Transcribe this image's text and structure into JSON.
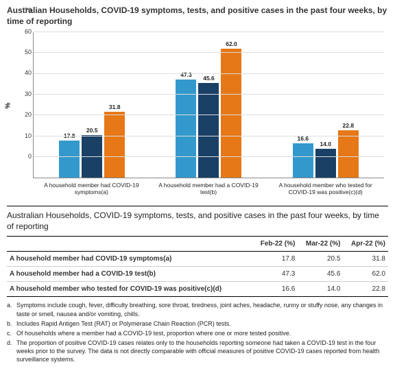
{
  "chart": {
    "title": "Australian Households, COVID-19 symptoms, tests, and positive cases in the past four weeks, by time of reporting",
    "type": "bar",
    "y_label": "%",
    "ylim": [
      0,
      70
    ],
    "ytick_step": 10,
    "yticks": [
      0,
      10,
      20,
      30,
      40,
      50,
      60,
      70
    ],
    "categories": [
      "A household member had COVID-19 symptoms(a)",
      "A household member had a COVID-19 test(b)",
      "A household member who tested for COVID-19 was positive(c)(d)"
    ],
    "series_colors": [
      "#3399cc",
      "#1a4066",
      "#e67817"
    ],
    "series_names": [
      "Feb-22",
      "Mar-22",
      "Apr-22"
    ],
    "values": [
      [
        17.8,
        20.5,
        31.8
      ],
      [
        47.3,
        45.6,
        62.0
      ],
      [
        16.6,
        14.0,
        22.8
      ]
    ],
    "background_color": "#ffffff",
    "grid_color": "#dddddd",
    "axis_color": "#888888"
  },
  "table": {
    "title": "Australian Households, COVID-19 symptoms, tests, and positive cases in the past four weeks, by time of reporting",
    "columns": [
      "",
      "Feb-22 (%)",
      "Mar-22 (%)",
      "Apr-22 (%)"
    ],
    "rows": [
      [
        "A household member had COVID-19 symptoms(a)",
        "17.8",
        "20.5",
        "31.8"
      ],
      [
        "A household member had a COVID-19 test(b)",
        "47.3",
        "45.6",
        "62.0"
      ],
      [
        "A household member who tested for COVID-19 was positive(c)(d)",
        "16.6",
        "14.0",
        "22.8"
      ]
    ]
  },
  "footnotes": [
    {
      "key": "a.",
      "text": "Symptoms include cough, fever, difficulty breathing, sore throat, tiredness, joint aches, headache, runny or stuffy nose, any changes in taste or smell, nausea and/or vomiting, chills."
    },
    {
      "key": "b.",
      "text": "Includes Rapid Antigen Test (RAT) or Polymerase Chain Reaction (PCR) tests."
    },
    {
      "key": "c.",
      "text": "Of households where a member had a COVID-19 test, proportion where one or more tested positive."
    },
    {
      "key": "d.",
      "text": "The proportion of positive COVID-19 cases relates only to the households reporting someone had taken a COVID-19 test in the four weeks prior to the survey. The data is not directly comparable with official measures of positive COVID-19 cases reported from health surveillance systems."
    }
  ]
}
